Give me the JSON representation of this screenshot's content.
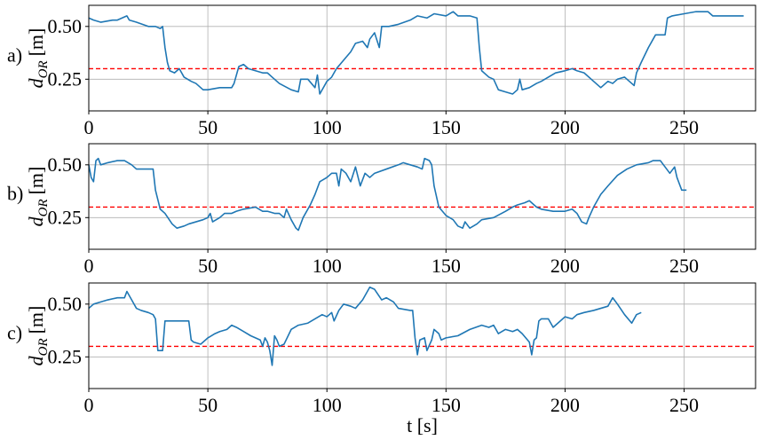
{
  "chart_data": [
    {
      "type": "line",
      "label": "a)",
      "y_label": {
        "symbol": "d",
        "subscript": "OR",
        "unit": "[m]"
      },
      "xlim": [
        0,
        280
      ],
      "ylim": [
        0.1,
        0.6
      ],
      "xticks": [
        0,
        50,
        100,
        150,
        200,
        250
      ],
      "yticks": [
        0.25,
        {
          "value": 0.5,
          "label": "0.50"
        }
      ],
      "grid": true,
      "hline": 0.3,
      "hline_color": "#ff0000",
      "x": [
        0,
        2,
        5,
        10,
        12,
        16,
        17,
        20,
        25,
        28,
        30,
        31,
        32,
        33,
        34,
        36,
        38,
        40,
        43,
        45,
        48,
        50,
        55,
        60,
        61,
        62,
        63,
        65,
        67,
        70,
        73,
        75,
        77,
        80,
        85,
        88,
        89,
        92,
        95,
        96,
        97,
        100,
        102,
        104,
        107,
        110,
        112,
        115,
        117,
        118,
        120,
        122,
        123,
        126,
        130,
        135,
        138,
        142,
        145,
        150,
        153,
        155,
        160,
        163,
        164,
        165,
        168,
        170,
        172,
        175,
        178,
        180,
        181,
        182,
        185,
        188,
        190,
        193,
        196,
        200,
        203,
        205,
        208,
        212,
        215,
        218,
        220,
        222,
        225,
        227,
        229,
        230,
        232,
        235,
        237,
        238,
        242,
        243,
        245,
        250,
        255,
        260,
        262,
        265,
        270,
        275
      ],
      "series": [
        {
          "color": "#1f77b4",
          "values": [
            0.54,
            0.53,
            0.52,
            0.53,
            0.53,
            0.55,
            0.53,
            0.52,
            0.5,
            0.5,
            0.49,
            0.5,
            0.4,
            0.33,
            0.29,
            0.28,
            0.3,
            0.26,
            0.24,
            0.23,
            0.2,
            0.2,
            0.21,
            0.21,
            0.23,
            0.27,
            0.31,
            0.32,
            0.3,
            0.29,
            0.28,
            0.28,
            0.26,
            0.23,
            0.2,
            0.19,
            0.25,
            0.25,
            0.21,
            0.27,
            0.18,
            0.24,
            0.26,
            0.3,
            0.34,
            0.38,
            0.42,
            0.43,
            0.4,
            0.44,
            0.47,
            0.4,
            0.5,
            0.5,
            0.51,
            0.53,
            0.55,
            0.54,
            0.56,
            0.55,
            0.57,
            0.55,
            0.55,
            0.54,
            0.4,
            0.29,
            0.26,
            0.25,
            0.2,
            0.19,
            0.18,
            0.2,
            0.25,
            0.2,
            0.21,
            0.23,
            0.24,
            0.26,
            0.28,
            0.29,
            0.3,
            0.29,
            0.28,
            0.24,
            0.21,
            0.24,
            0.23,
            0.25,
            0.26,
            0.24,
            0.22,
            0.28,
            0.33,
            0.4,
            0.44,
            0.46,
            0.46,
            0.54,
            0.55,
            0.56,
            0.57,
            0.57,
            0.55,
            0.55,
            0.55,
            0.55
          ]
        }
      ]
    },
    {
      "type": "line",
      "label": "b)",
      "y_label": {
        "symbol": "d",
        "subscript": "OR",
        "unit": "[m]"
      },
      "xlim": [
        0,
        280
      ],
      "ylim": [
        0.1,
        0.6
      ],
      "xticks": [
        0,
        50,
        100,
        150,
        200,
        250
      ],
      "yticks": [
        0.25,
        {
          "value": 0.5,
          "label": "0.50"
        }
      ],
      "grid": true,
      "hline": 0.3,
      "hline_color": "#ff0000",
      "x": [
        0,
        1,
        2,
        3,
        4,
        5,
        8,
        12,
        15,
        18,
        20,
        25,
        27,
        28,
        30,
        32,
        35,
        37,
        40,
        42,
        45,
        48,
        50,
        51,
        52,
        55,
        57,
        60,
        62,
        65,
        70,
        73,
        75,
        78,
        80,
        82,
        83,
        85,
        87,
        88,
        90,
        93,
        95,
        97,
        100,
        102,
        104,
        105,
        106,
        108,
        110,
        112,
        114,
        116,
        118,
        120,
        125,
        130,
        132,
        135,
        138,
        140,
        141,
        143,
        144,
        145,
        147,
        150,
        153,
        155,
        157,
        158,
        160,
        163,
        165,
        170,
        175,
        178,
        180,
        183,
        185,
        188,
        190,
        195,
        200,
        203,
        205,
        207,
        209,
        210,
        212,
        215,
        218,
        222,
        226,
        230,
        235,
        237,
        240,
        242,
        244,
        246,
        247,
        249,
        251
      ],
      "series": [
        {
          "color": "#1f77b4",
          "values": [
            0.5,
            0.44,
            0.42,
            0.52,
            0.53,
            0.5,
            0.51,
            0.52,
            0.52,
            0.5,
            0.48,
            0.48,
            0.48,
            0.38,
            0.29,
            0.27,
            0.22,
            0.2,
            0.21,
            0.22,
            0.23,
            0.24,
            0.25,
            0.27,
            0.23,
            0.25,
            0.27,
            0.27,
            0.28,
            0.29,
            0.3,
            0.28,
            0.28,
            0.27,
            0.27,
            0.25,
            0.29,
            0.24,
            0.2,
            0.19,
            0.25,
            0.31,
            0.36,
            0.42,
            0.44,
            0.46,
            0.46,
            0.4,
            0.48,
            0.46,
            0.42,
            0.49,
            0.4,
            0.46,
            0.44,
            0.46,
            0.48,
            0.5,
            0.51,
            0.5,
            0.49,
            0.48,
            0.53,
            0.52,
            0.5,
            0.4,
            0.3,
            0.26,
            0.24,
            0.21,
            0.2,
            0.23,
            0.2,
            0.22,
            0.24,
            0.25,
            0.28,
            0.3,
            0.31,
            0.32,
            0.33,
            0.3,
            0.29,
            0.28,
            0.28,
            0.29,
            0.27,
            0.23,
            0.22,
            0.25,
            0.3,
            0.36,
            0.4,
            0.45,
            0.48,
            0.5,
            0.51,
            0.52,
            0.52,
            0.49,
            0.46,
            0.49,
            0.44,
            0.38,
            0.38
          ]
        }
      ]
    },
    {
      "type": "line",
      "label": "c)",
      "y_label": {
        "symbol": "d",
        "subscript": "OR",
        "unit": "[m]"
      },
      "x_label": "t [s]",
      "xlim": [
        0,
        280
      ],
      "ylim": [
        0.1,
        0.6
      ],
      "xticks": [
        0,
        50,
        100,
        150,
        200,
        250
      ],
      "yticks": [
        0.25,
        {
          "value": 0.5,
          "label": "0.50"
        }
      ],
      "grid": true,
      "hline": 0.3,
      "hline_color": "#ff0000",
      "x": [
        0,
        2,
        5,
        8,
        12,
        15,
        16,
        18,
        20,
        22,
        25,
        27,
        28,
        29,
        31,
        32,
        35,
        38,
        42,
        43,
        44,
        47,
        50,
        53,
        55,
        58,
        60,
        62,
        65,
        68,
        70,
        72,
        73,
        74,
        75,
        76,
        77,
        78,
        79,
        80,
        82,
        85,
        88,
        92,
        95,
        98,
        100,
        102,
        103,
        105,
        107,
        110,
        112,
        115,
        117,
        118,
        120,
        123,
        125,
        128,
        130,
        135,
        136,
        137,
        138,
        139,
        141,
        142,
        144,
        145,
        147,
        148,
        150,
        155,
        160,
        165,
        168,
        170,
        172,
        175,
        178,
        180,
        182,
        185,
        186,
        187,
        188,
        189,
        190,
        193,
        195,
        197,
        200,
        203,
        205,
        208,
        212,
        215,
        218,
        220,
        222,
        225,
        228,
        230,
        232
      ],
      "series": [
        {
          "color": "#1f77b4",
          "values": [
            0.48,
            0.5,
            0.51,
            0.52,
            0.53,
            0.53,
            0.56,
            0.52,
            0.48,
            0.47,
            0.46,
            0.45,
            0.43,
            0.28,
            0.28,
            0.42,
            0.42,
            0.42,
            0.42,
            0.33,
            0.32,
            0.31,
            0.34,
            0.36,
            0.37,
            0.38,
            0.4,
            0.39,
            0.37,
            0.35,
            0.34,
            0.33,
            0.3,
            0.34,
            0.32,
            0.28,
            0.21,
            0.35,
            0.33,
            0.3,
            0.31,
            0.38,
            0.4,
            0.41,
            0.43,
            0.45,
            0.44,
            0.46,
            0.42,
            0.47,
            0.5,
            0.49,
            0.48,
            0.52,
            0.56,
            0.58,
            0.57,
            0.52,
            0.53,
            0.51,
            0.48,
            0.47,
            0.47,
            0.34,
            0.26,
            0.33,
            0.34,
            0.28,
            0.33,
            0.38,
            0.36,
            0.33,
            0.34,
            0.35,
            0.38,
            0.4,
            0.39,
            0.4,
            0.36,
            0.38,
            0.37,
            0.38,
            0.36,
            0.32,
            0.26,
            0.33,
            0.34,
            0.42,
            0.43,
            0.43,
            0.39,
            0.41,
            0.44,
            0.43,
            0.45,
            0.46,
            0.47,
            0.48,
            0.49,
            0.53,
            0.5,
            0.45,
            0.41,
            0.45,
            0.46
          ]
        }
      ]
    }
  ]
}
